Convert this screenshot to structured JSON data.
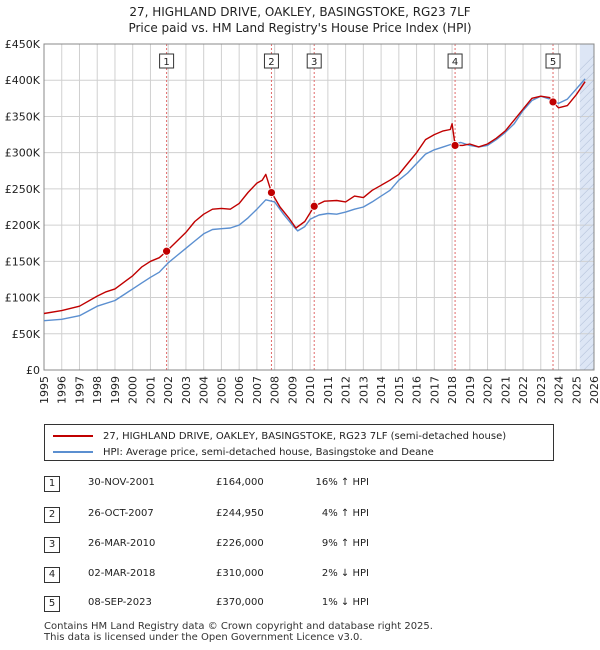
{
  "title": {
    "line1": "27, HIGHLAND DRIVE, OAKLEY, BASINGSTOKE, RG23 7LF",
    "line2": "Price paid vs. HM Land Registry's House Price Index (HPI)"
  },
  "colors": {
    "price_line": "#c00000",
    "hpi_line": "#5b8fd0",
    "marker_line": "#e06b6b",
    "future_shade": "#dde6f5"
  },
  "chart_data": {
    "type": "line",
    "ylabel": "",
    "xlabel": "",
    "xlim": [
      1995,
      2026
    ],
    "ylim": [
      0,
      450000
    ],
    "y_ticks": [
      0,
      50000,
      100000,
      150000,
      200000,
      250000,
      300000,
      350000,
      400000,
      450000
    ],
    "y_tick_labels": [
      "£0",
      "£50K",
      "£100K",
      "£150K",
      "£200K",
      "£250K",
      "£300K",
      "£350K",
      "£400K",
      "£450K"
    ],
    "x_ticks": [
      1995,
      1996,
      1997,
      1998,
      1999,
      2000,
      2001,
      2002,
      2003,
      2004,
      2005,
      2006,
      2007,
      2008,
      2009,
      2010,
      2011,
      2012,
      2013,
      2014,
      2015,
      2016,
      2017,
      2018,
      2019,
      2020,
      2021,
      2022,
      2023,
      2024,
      2025,
      2026
    ],
    "x_tick_labels": [
      "1995",
      "1996",
      "1997",
      "1998",
      "1999",
      "2000",
      "2001",
      "2002",
      "2003",
      "2004",
      "2005",
      "2006",
      "2007",
      "2008",
      "2009",
      "2010",
      "2011",
      "2012",
      "2013",
      "2014",
      "2015",
      "2016",
      "2017",
      "2018",
      "2019",
      "2020",
      "2021",
      "2022",
      "2023",
      "2024",
      "2025",
      "2026"
    ],
    "grid": true,
    "future_shade_start": 2025.2,
    "series": [
      {
        "name": "27, HIGHLAND DRIVE, OAKLEY, BASINGSTOKE, RG23 7LF (semi-detached house)",
        "color": "#c00000",
        "x": [
          1995.0,
          1996.0,
          1997.0,
          1998.0,
          1998.5,
          1999.0,
          2000.0,
          2000.5,
          2001.0,
          2001.5,
          2001.91,
          2002.5,
          2003.0,
          2003.5,
          2004.0,
          2004.5,
          2005.0,
          2005.5,
          2006.0,
          2006.5,
          2007.0,
          2007.3,
          2007.5,
          2007.82,
          2008.3,
          2008.8,
          2009.2,
          2009.7,
          2010.23,
          2010.8,
          2011.5,
          2012.0,
          2012.5,
          2013.0,
          2013.5,
          2014.0,
          2014.5,
          2015.0,
          2015.5,
          2016.0,
          2016.5,
          2017.0,
          2017.5,
          2017.9,
          2018.0,
          2018.17,
          2018.6,
          2019.0,
          2019.5,
          2020.0,
          2020.5,
          2021.0,
          2021.5,
          2022.0,
          2022.5,
          2023.0,
          2023.5,
          2023.69,
          2024.0,
          2024.5,
          2025.0,
          2025.5
        ],
        "values": [
          78000,
          82000,
          88000,
          102000,
          108000,
          112000,
          130000,
          142000,
          150000,
          155000,
          164000,
          178000,
          190000,
          205000,
          215000,
          222000,
          223000,
          222000,
          230000,
          245000,
          258000,
          262000,
          270000,
          244950,
          225000,
          210000,
          196000,
          205000,
          226000,
          233000,
          234000,
          232000,
          240000,
          238000,
          248000,
          255000,
          262000,
          270000,
          285000,
          300000,
          318000,
          325000,
          330000,
          332000,
          340000,
          310000,
          310000,
          312000,
          308000,
          312000,
          320000,
          330000,
          345000,
          360000,
          375000,
          378000,
          376000,
          370000,
          362000,
          365000,
          380000,
          398000
        ]
      },
      {
        "name": "HPI: Average price, semi-detached house, Basingstoke and Deane",
        "color": "#5b8fd0",
        "x": [
          1995.0,
          1996.0,
          1997.0,
          1998.0,
          1999.0,
          2000.0,
          2000.5,
          2001.0,
          2001.5,
          2002.0,
          2002.5,
          2003.0,
          2003.5,
          2004.0,
          2004.5,
          2005.0,
          2005.5,
          2006.0,
          2006.5,
          2007.0,
          2007.5,
          2008.0,
          2008.5,
          2009.0,
          2009.3,
          2009.7,
          2010.0,
          2010.5,
          2011.0,
          2011.5,
          2012.0,
          2012.5,
          2013.0,
          2013.5,
          2014.0,
          2014.5,
          2015.0,
          2015.5,
          2016.0,
          2016.5,
          2017.0,
          2017.5,
          2018.0,
          2018.5,
          2019.0,
          2019.5,
          2020.0,
          2020.5,
          2021.0,
          2021.5,
          2022.0,
          2022.5,
          2023.0,
          2023.5,
          2024.0,
          2024.5,
          2025.0,
          2025.5
        ],
        "values": [
          68000,
          70000,
          75000,
          88000,
          96000,
          112000,
          120000,
          128000,
          135000,
          148000,
          158000,
          168000,
          178000,
          188000,
          194000,
          195000,
          196000,
          200000,
          210000,
          222000,
          235000,
          232000,
          215000,
          200000,
          192000,
          198000,
          208000,
          214000,
          216000,
          215000,
          218000,
          222000,
          225000,
          232000,
          240000,
          248000,
          262000,
          272000,
          285000,
          298000,
          304000,
          308000,
          312000,
          314000,
          310000,
          308000,
          310000,
          318000,
          328000,
          340000,
          358000,
          372000,
          378000,
          374000,
          368000,
          374000,
          388000,
          402000
        ]
      }
    ],
    "sales": [
      {
        "num": "1",
        "x": 2001.91,
        "value": 164000
      },
      {
        "num": "2",
        "x": 2007.82,
        "value": 244950
      },
      {
        "num": "3",
        "x": 2010.23,
        "value": 226000
      },
      {
        "num": "4",
        "x": 2018.17,
        "value": 310000
      },
      {
        "num": "5",
        "x": 2023.69,
        "value": 370000
      }
    ]
  },
  "legend": {
    "price_label": "27, HIGHLAND DRIVE, OAKLEY, BASINGSTOKE, RG23 7LF (semi-detached house)",
    "hpi_label": "HPI: Average price, semi-detached house, Basingstoke and Deane"
  },
  "sales_table": [
    {
      "num": "1",
      "date": "30-NOV-2001",
      "price": "£164,000",
      "hpi": "16% ↑ HPI"
    },
    {
      "num": "2",
      "date": "26-OCT-2007",
      "price": "£244,950",
      "hpi": "4% ↑ HPI"
    },
    {
      "num": "3",
      "date": "26-MAR-2010",
      "price": "£226,000",
      "hpi": "9% ↑ HPI"
    },
    {
      "num": "4",
      "date": "02-MAR-2018",
      "price": "£310,000",
      "hpi": "2% ↓ HPI"
    },
    {
      "num": "5",
      "date": "08-SEP-2023",
      "price": "£370,000",
      "hpi": "1% ↓ HPI"
    }
  ],
  "footer": {
    "line1": "Contains HM Land Registry data © Crown copyright and database right 2025.",
    "line2": "This data is licensed under the Open Government Licence v3.0."
  }
}
